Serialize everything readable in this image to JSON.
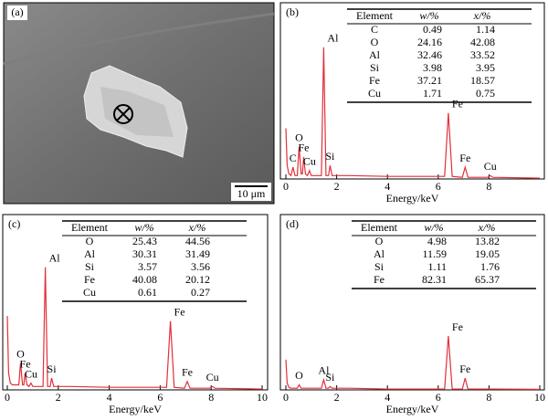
{
  "panel_a": {
    "label": "(a)",
    "scale_bar": "10 μm"
  },
  "chart_data": [
    {
      "type": "line",
      "label": "(b)",
      "x_label": "Energy/keV",
      "xlim": [
        0,
        10
      ],
      "xticks": [
        0,
        2,
        4,
        6,
        8
      ],
      "ylim": [
        0,
        100
      ],
      "color": "#e0303a",
      "x": [
        0,
        0.05,
        0.12,
        0.2,
        0.28,
        0.36,
        0.45,
        0.52,
        0.6,
        0.65,
        0.7,
        0.77,
        0.85,
        0.93,
        1.0,
        1.4,
        1.49,
        1.58,
        1.68,
        1.74,
        1.82,
        2.5,
        4,
        6.25,
        6.4,
        6.55,
        6.95,
        7.06,
        7.17,
        7.95,
        8.05,
        8.15,
        10
      ],
      "values": [
        30,
        8,
        3,
        2,
        7,
        2,
        2,
        19,
        3,
        3,
        13,
        3,
        2,
        5,
        2,
        2,
        78,
        2,
        2,
        8,
        2,
        2,
        1.5,
        1.5,
        39,
        1.5,
        1,
        7,
        1,
        1,
        2,
        1,
        0.5
      ],
      "peak_labels": [
        {
          "text": "C",
          "x": 0.28
        },
        {
          "text": "O",
          "x": 0.52
        },
        {
          "text": "Fe",
          "x": 0.7
        },
        {
          "text": "Cu",
          "x": 0.93
        },
        {
          "text": "Al",
          "x": 1.49
        },
        {
          "text": "Si",
          "x": 1.74
        },
        {
          "text": "Fe",
          "x": 6.4
        },
        {
          "text": "Fe",
          "x": 7.06
        },
        {
          "text": "Cu",
          "x": 8.05
        }
      ],
      "table": {
        "header": [
          "Element",
          "w/%",
          "x/%"
        ],
        "rows": [
          [
            "C",
            0.49,
            1.14
          ],
          [
            "O",
            24.16,
            42.08
          ],
          [
            "Al",
            32.46,
            33.52
          ],
          [
            "Si",
            3.98,
            3.95
          ],
          [
            "Fe",
            37.21,
            18.57
          ],
          [
            "Cu",
            1.71,
            0.75
          ]
        ]
      }
    },
    {
      "type": "line",
      "label": "(c)",
      "x_label": "Energy/keV",
      "xlim": [
        0,
        10
      ],
      "xticks": [
        0,
        2,
        4,
        6,
        8,
        10
      ],
      "ylim": [
        0,
        100
      ],
      "color": "#e0303a",
      "x": [
        0,
        0.05,
        0.12,
        0.2,
        0.28,
        0.36,
        0.45,
        0.52,
        0.6,
        0.65,
        0.7,
        0.77,
        0.85,
        0.93,
        1.0,
        1.4,
        1.49,
        1.58,
        1.68,
        1.74,
        1.82,
        2.5,
        4,
        6.25,
        6.4,
        6.55,
        6.95,
        7.06,
        7.17,
        7.95,
        8.05,
        8.15,
        10
      ],
      "values": [
        44,
        10,
        4,
        3,
        3,
        3,
        3,
        16,
        3,
        3,
        10,
        3,
        2,
        4,
        2,
        2,
        73,
        2,
        2,
        7,
        2,
        2,
        1.5,
        1.5,
        41,
        1.5,
        1,
        5,
        1,
        1,
        2,
        1,
        0.5
      ],
      "peak_labels": [
        {
          "text": "O",
          "x": 0.52
        },
        {
          "text": "Fe",
          "x": 0.7
        },
        {
          "text": "Cu",
          "x": 0.93
        },
        {
          "text": "Al",
          "x": 1.49
        },
        {
          "text": "Si",
          "x": 1.74
        },
        {
          "text": "Fe",
          "x": 6.4
        },
        {
          "text": "Fe",
          "x": 7.06
        },
        {
          "text": "Cu",
          "x": 8.05
        }
      ],
      "table": {
        "header": [
          "Element",
          "w/%",
          "x/%"
        ],
        "rows": [
          [
            "O",
            25.43,
            44.56
          ],
          [
            "Al",
            30.31,
            31.49
          ],
          [
            "Si",
            3.57,
            3.56
          ],
          [
            "Fe",
            40.08,
            20.12
          ],
          [
            "Cu",
            0.61,
            0.27
          ]
        ]
      }
    },
    {
      "type": "line",
      "label": "(d)",
      "x_label": "Energy/keV",
      "xlim": [
        0,
        10
      ],
      "xticks": [
        0,
        2,
        4,
        6,
        8,
        10
      ],
      "ylim": [
        0,
        100
      ],
      "color": "#e0303a",
      "x": [
        0,
        0.05,
        0.12,
        0.2,
        0.28,
        0.36,
        0.45,
        0.52,
        0.6,
        0.65,
        0.7,
        0.77,
        0.85,
        0.93,
        1.0,
        1.4,
        1.49,
        1.58,
        1.68,
        1.74,
        1.82,
        2.5,
        4,
        6.25,
        6.4,
        6.55,
        6.95,
        7.06,
        7.17,
        7.95,
        8.05,
        8.15,
        10
      ],
      "values": [
        18,
        4,
        1.5,
        1,
        1,
        1,
        1,
        3,
        1,
        1,
        1,
        1,
        1,
        1,
        1,
        1,
        6,
        1,
        1,
        2,
        1,
        1,
        0.5,
        0.5,
        32,
        0.5,
        0.5,
        7,
        0.5,
        0.5,
        0.5,
        0.5,
        0.3
      ],
      "peak_labels": [
        {
          "text": "O",
          "x": 0.52
        },
        {
          "text": "Al",
          "x": 1.49
        },
        {
          "text": "Si",
          "x": 1.74
        },
        {
          "text": "Fe",
          "x": 6.4
        },
        {
          "text": "Fe",
          "x": 7.06
        }
      ],
      "table": {
        "header": [
          "Element",
          "w/%",
          "x/%"
        ],
        "rows": [
          [
            "O",
            4.98,
            13.82
          ],
          [
            "Al",
            11.59,
            19.05
          ],
          [
            "Si",
            1.11,
            1.76
          ],
          [
            "Fe",
            82.31,
            65.37
          ]
        ]
      }
    }
  ]
}
